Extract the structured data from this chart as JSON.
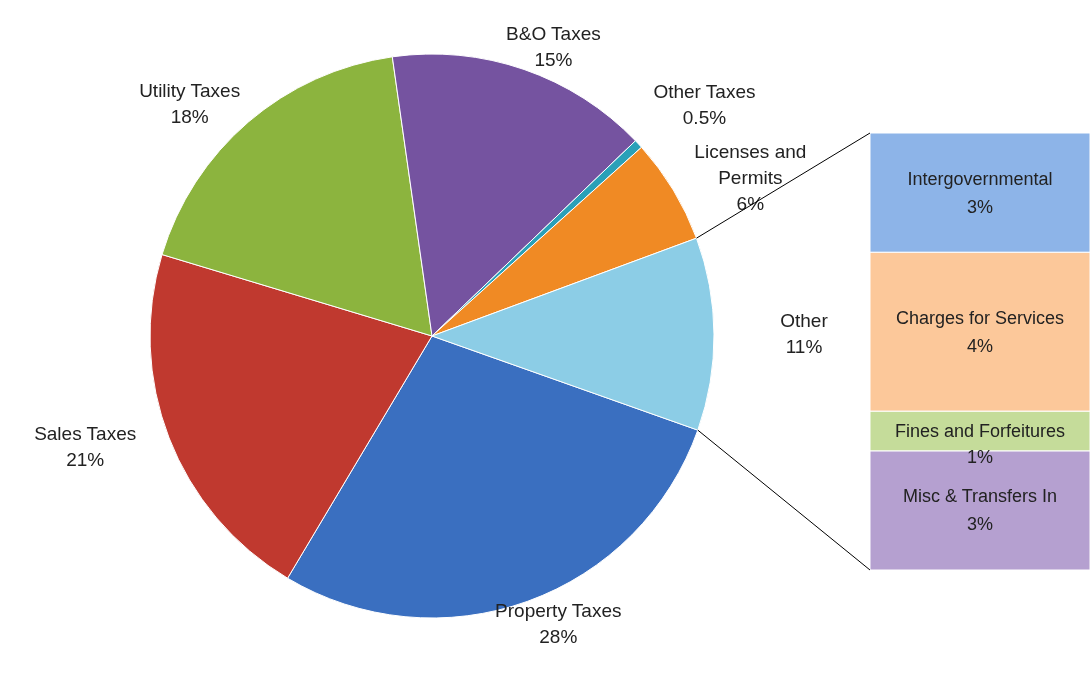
{
  "chart_data": [
    {
      "type": "pie",
      "categories": [
        "Property Taxes",
        "Sales Taxes",
        "Utility Taxes",
        "B&O Taxes",
        "Other Taxes",
        "Licenses and Permits",
        "Other"
      ],
      "values": [
        28,
        21,
        18,
        15,
        0.5,
        6,
        11
      ],
      "colors": [
        "#3a6fc0",
        "#c0392f",
        "#8cb43e",
        "#7553a0",
        "#2aa0b8",
        "#f08a24",
        "#8ccde6"
      ],
      "value_labels": [
        "28%",
        "21%",
        "18%",
        "15%",
        "0.5%",
        "6%",
        "11%"
      ]
    },
    {
      "type": "bar",
      "stacked": true,
      "categories": [
        null
      ],
      "series": [
        {
          "name": "Misc & Transfers In",
          "color": "#b5a0d0",
          "values": [
            3
          ],
          "value_labels": [
            "3%"
          ]
        },
        {
          "name": "Fines and Forfeitures",
          "color": "#c5dc9a",
          "values": [
            1
          ],
          "value_labels": [
            "1%"
          ]
        },
        {
          "name": "Charges for Services",
          "color": "#fcc89a",
          "values": [
            4
          ],
          "value_labels": [
            "4%"
          ]
        },
        {
          "name": "Intergovernmental",
          "color": "#8db4e8",
          "values": [
            3
          ],
          "value_labels": [
            "3%"
          ]
        }
      ]
    }
  ]
}
